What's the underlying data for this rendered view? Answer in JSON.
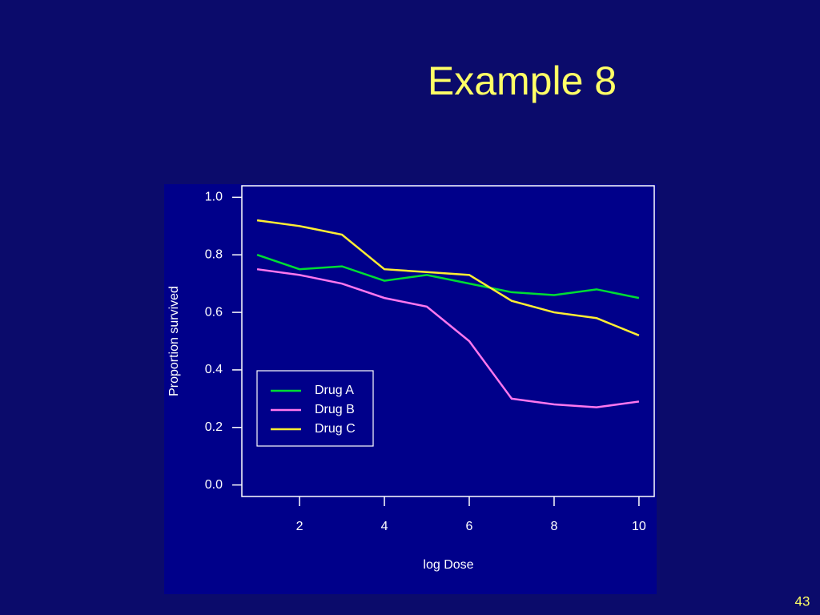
{
  "slide_number": "43",
  "chart_data": {
    "type": "line",
    "title": "Example 8",
    "x_label": "log Dose",
    "y_label": "Proportion survived",
    "x": [
      1,
      2,
      3,
      4,
      5,
      6,
      7,
      8,
      9,
      10
    ],
    "series": [
      {
        "name": "Drug A",
        "color": "#00dd33",
        "values": [
          0.8,
          0.75,
          0.76,
          0.71,
          0.73,
          0.7,
          0.67,
          0.66,
          0.68,
          0.65
        ]
      },
      {
        "name": "Drug B",
        "color": "#ff77ee",
        "values": [
          0.75,
          0.73,
          0.7,
          0.65,
          0.62,
          0.5,
          0.3,
          0.28,
          0.27,
          0.29
        ]
      },
      {
        "name": "Drug C",
        "color": "#ffee33",
        "values": [
          0.92,
          0.9,
          0.87,
          0.75,
          0.74,
          0.73,
          0.64,
          0.6,
          0.58,
          0.52
        ]
      }
    ],
    "xlim": [
      0.64,
      10.36
    ],
    "ylim": [
      -0.04,
      1.04
    ],
    "xticks": [
      2,
      4,
      6,
      8,
      10
    ],
    "yticks": [
      {
        "value": 0,
        "label": "0.0"
      },
      {
        "value": 0.2,
        "label": "0.2"
      },
      {
        "value": 0.4,
        "label": "0.4"
      },
      {
        "value": 0.6,
        "label": "0.6"
      },
      {
        "value": 0.8,
        "label": "0.8"
      },
      {
        "value": 1,
        "label": "1.0"
      }
    ]
  }
}
